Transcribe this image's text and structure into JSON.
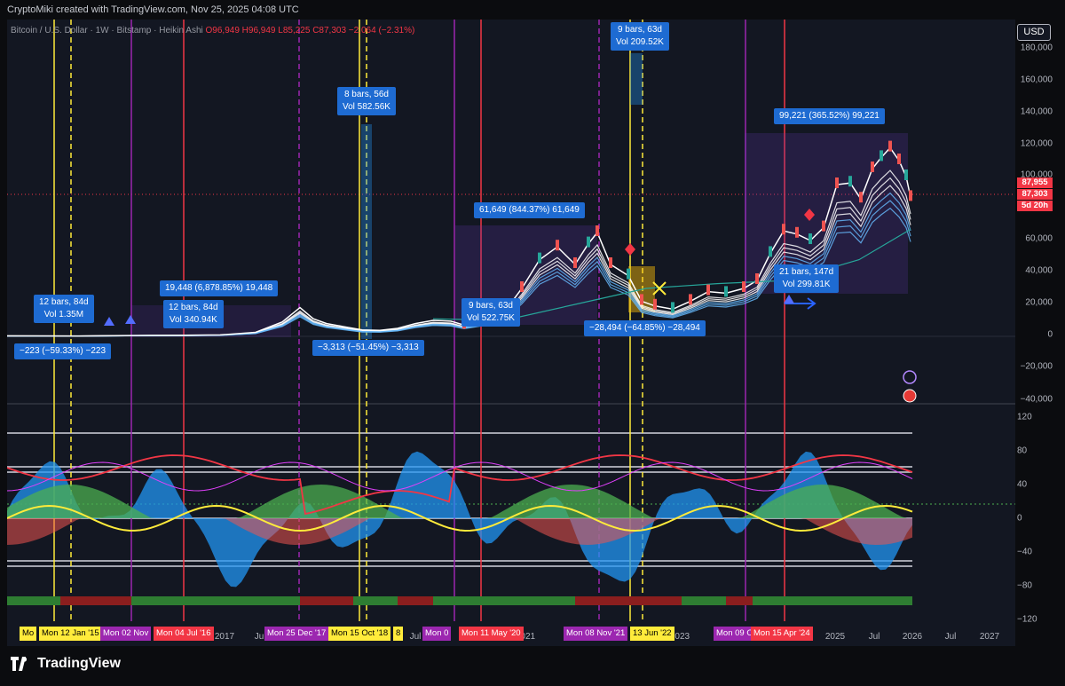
{
  "header": {
    "credit": "CryptoMiki created with TradingView.com, Nov 25, 2025 04:08 UTC"
  },
  "legend": {
    "symbol": "Bitcoin / U.S. Dollar · 1W · Bitstamp · Heikin Ashi",
    "open": "O96,949",
    "high": "H96,949",
    "low": "L85,225",
    "close": "C87,303",
    "change": "−2,064 (−2.31%)"
  },
  "currency_button": "USD",
  "price_axis": [
    "180,000",
    "160,000",
    "140,000",
    "120,000",
    "100,000",
    "80,000",
    "60,000",
    "40,000",
    "20,000",
    "0",
    "−20,000",
    "−40,000"
  ],
  "price_tags": {
    "high": "87,955",
    "last": "87,303",
    "countdown": "5d 20h"
  },
  "osc_axis": [
    "120",
    "80",
    "40",
    "0",
    "−40",
    "−80",
    "−120"
  ],
  "time_axis": [
    "2021",
    "2023",
    "2025",
    "Jul",
    "2026",
    "Jul",
    "2027"
  ],
  "time_axis_partial": [
    "2017",
    "Ju",
    "Jul"
  ],
  "time_flags": [
    {
      "text": "Mo",
      "color": "yellow"
    },
    {
      "text": "Mon 12 Jan '15",
      "color": "yellow"
    },
    {
      "text": "Mon 02 Nov",
      "color": "purple"
    },
    {
      "text": "Mon 04 Jul '16",
      "color": "red"
    },
    {
      "text": "Mon 25 Dec '17",
      "color": "purple"
    },
    {
      "text": "Mon 15 Oct '18",
      "color": "yellow"
    },
    {
      "text": "8",
      "color": "yellow"
    },
    {
      "text": "Mon 0",
      "color": "purple"
    },
    {
      "text": "Mon 11 May '20",
      "color": "red"
    },
    {
      "text": "Mon 08 Nov '21",
      "color": "purple"
    },
    {
      "text": "13 Jun '22",
      "color": "yellow"
    },
    {
      "text": "Mon 09 O",
      "color": "purple"
    },
    {
      "text": "Mon 15 Apr '24",
      "color": "red"
    }
  ],
  "callouts": [
    {
      "line1": "12 bars, 84d",
      "line2": "Vol 1.35M"
    },
    {
      "line1": "−223 (−59.33%) −223",
      "line2": ""
    },
    {
      "line1": "19,448 (6,878.85%) 19,448",
      "line2": ""
    },
    {
      "line1": "12 bars, 84d",
      "line2": "Vol 340.94K"
    },
    {
      "line1": "8 bars, 56d",
      "line2": "Vol 582.56K"
    },
    {
      "line1": "−3,313 (−51.45%) −3,313",
      "line2": ""
    },
    {
      "line1": "9 bars, 63d",
      "line2": "Vol 522.75K"
    },
    {
      "line1": "61,649 (844.37%) 61,649",
      "line2": ""
    },
    {
      "line1": "9 bars, 63d",
      "line2": "Vol 209.52K"
    },
    {
      "line1": "−28,494 (−64.85%) −28,494",
      "line2": ""
    },
    {
      "line1": "99,221 (365.52%) 99,221",
      "line2": ""
    },
    {
      "line1": "21 bars, 147d",
      "line2": "Vol 299.81K"
    }
  ],
  "footer": {
    "brand": "TradingView"
  },
  "colors": {
    "background": "#131722",
    "up": "#089981",
    "down": "#f23645",
    "callout": "#1e6bd2",
    "yellow_line": "#ffeb3b",
    "purple_line": "#9c27b0",
    "red_line": "#f23645"
  }
}
